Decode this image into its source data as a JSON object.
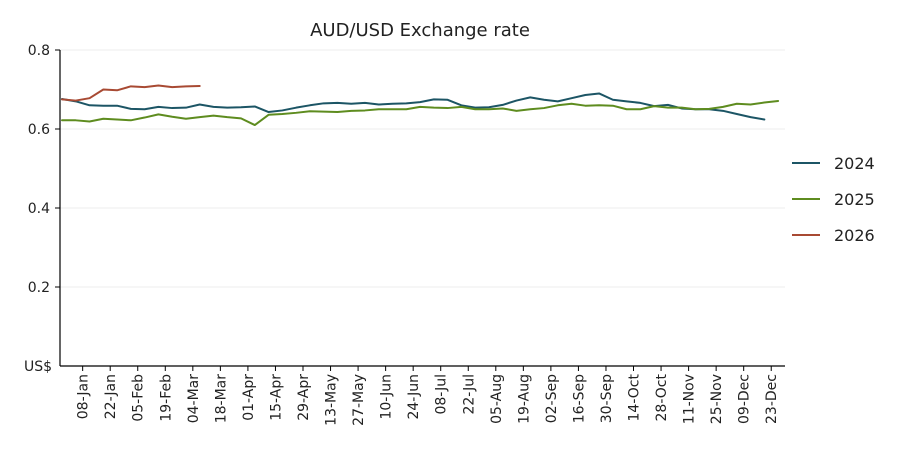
{
  "chart_data": {
    "type": "line",
    "title": "AUD/USD Exchange rate",
    "xlabel": "",
    "ylabel": "",
    "y_unit_label": "US$",
    "ylim": [
      0,
      0.8
    ],
    "y_ticks": [
      0.2,
      0.4,
      0.6,
      0.8
    ],
    "y_tick_labels": [
      "0.2",
      "0.4",
      "0.6",
      "0.8"
    ],
    "x_tick_labels": [
      "08-Jan",
      "22-Jan",
      "05-Feb",
      "19-Feb",
      "04-Mar",
      "18-Mar",
      "01-Apr",
      "15-Apr",
      "29-Apr",
      "13-May",
      "27-May",
      "10-Jun",
      "24-Jun",
      "08-Jul",
      "22-Jul",
      "05-Aug",
      "19-Aug",
      "02-Sep",
      "16-Sep",
      "30-Sep",
      "14-Oct",
      "28-Oct",
      "11-Nov",
      "25-Nov",
      "09-Dec",
      "23-Dec"
    ],
    "x_tick_positions": [
      1.5,
      3.5,
      5.5,
      7.5,
      9.5,
      11.5,
      13.5,
      15.5,
      17.5,
      19.5,
      21.5,
      23.5,
      25.5,
      27.5,
      29.5,
      31.5,
      33.5,
      35.5,
      37.5,
      39.5,
      41.5,
      43.5,
      45.5,
      47.5,
      49.5,
      51.5
    ],
    "xlim": [
      0,
      52.5
    ],
    "grid": true,
    "legend_position": "right",
    "series": [
      {
        "name": "2024",
        "color": "#1c5565",
        "x": [
          0,
          1,
          2,
          3,
          4,
          5,
          6,
          7,
          8,
          9,
          10,
          11,
          12,
          13,
          14,
          15,
          16,
          17,
          18,
          19,
          20,
          21,
          22,
          23,
          24,
          25,
          26,
          27,
          28,
          29,
          30,
          31,
          32,
          33,
          34,
          35,
          36,
          37,
          38,
          39,
          40,
          41,
          42,
          43,
          44,
          45,
          46,
          47,
          48,
          49,
          50,
          51
        ],
        "values": [
          0.676,
          0.67,
          0.66,
          0.659,
          0.659,
          0.651,
          0.65,
          0.656,
          0.653,
          0.654,
          0.662,
          0.656,
          0.654,
          0.655,
          0.657,
          0.643,
          0.647,
          0.654,
          0.66,
          0.665,
          0.666,
          0.664,
          0.666,
          0.662,
          0.664,
          0.665,
          0.668,
          0.675,
          0.674,
          0.66,
          0.654,
          0.655,
          0.661,
          0.672,
          0.68,
          0.674,
          0.67,
          0.678,
          0.686,
          0.69,
          0.674,
          0.67,
          0.666,
          0.658,
          0.661,
          0.652,
          0.65,
          0.65,
          0.646,
          0.638,
          0.63,
          0.624
        ]
      },
      {
        "name": "2025",
        "color": "#5e8c1f",
        "x": [
          0,
          1,
          2,
          3,
          4,
          5,
          6,
          7,
          8,
          9,
          10,
          11,
          12,
          13,
          14,
          15,
          16,
          17,
          18,
          19,
          20,
          21,
          22,
          23,
          24,
          25,
          26,
          27,
          28,
          29,
          30,
          31,
          32,
          33,
          34,
          35,
          36,
          37,
          38,
          39,
          40,
          41,
          42,
          43,
          44,
          45,
          46,
          47,
          48,
          49,
          50,
          51,
          52
        ],
        "values": [
          0.622,
          0.622,
          0.619,
          0.626,
          0.624,
          0.622,
          0.629,
          0.637,
          0.631,
          0.626,
          0.63,
          0.634,
          0.63,
          0.627,
          0.61,
          0.636,
          0.638,
          0.641,
          0.645,
          0.644,
          0.643,
          0.646,
          0.647,
          0.65,
          0.65,
          0.65,
          0.656,
          0.654,
          0.653,
          0.656,
          0.65,
          0.65,
          0.652,
          0.646,
          0.65,
          0.653,
          0.66,
          0.664,
          0.659,
          0.66,
          0.659,
          0.65,
          0.65,
          0.658,
          0.654,
          0.654,
          0.65,
          0.651,
          0.656,
          0.664,
          0.662,
          0.667,
          0.671
        ]
      },
      {
        "name": "2026",
        "color": "#a84a33",
        "x": [
          0,
          1,
          2,
          3,
          4,
          5,
          6,
          7,
          8,
          9,
          10
        ],
        "values": [
          0.675,
          0.672,
          0.678,
          0.7,
          0.698,
          0.708,
          0.706,
          0.71,
          0.706,
          0.708,
          0.709
        ]
      }
    ]
  },
  "colors": {
    "axis": "#000000",
    "grid": "#ececec",
    "text": "#222222"
  }
}
